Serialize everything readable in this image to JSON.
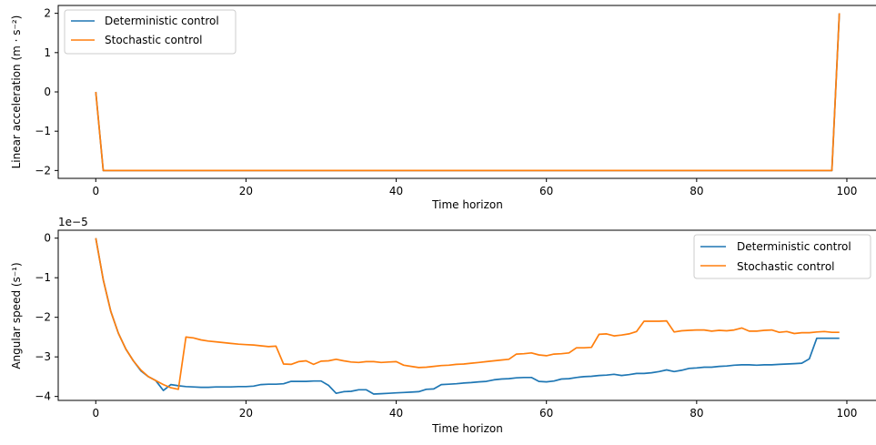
{
  "colors": {
    "deterministic": "#1f77b4",
    "stochastic": "#ff7f0e"
  },
  "chart_data": [
    {
      "type": "line",
      "xlabel": "Time horizon",
      "ylabel": "Linear acceleration (m · s⁻²)",
      "xlim": [
        -5,
        104
      ],
      "ylim": [
        -2.2,
        2.2
      ],
      "xticks": [
        0,
        20,
        40,
        60,
        80,
        100
      ],
      "yticks": [
        2,
        1,
        0,
        -1,
        -2
      ],
      "ytick_labels": [
        "2",
        "1",
        "0",
        "−1",
        "−2"
      ],
      "legend_position": "top-left",
      "series": [
        {
          "name": "Deterministic control",
          "color": "#1f77b4",
          "x": [
            0,
            1,
            98,
            99
          ],
          "y": [
            0,
            -2,
            -2,
            2
          ]
        },
        {
          "name": "Stochastic control",
          "color": "#ff7f0e",
          "x": [
            0,
            1,
            98,
            99
          ],
          "y": [
            0,
            -2,
            -2,
            2
          ]
        }
      ]
    },
    {
      "type": "line",
      "xlabel": "Time horizon",
      "ylabel": "Angular speed (s⁻¹)",
      "offset_text": "1e−5",
      "xlim": [
        -5,
        104
      ],
      "ylim": [
        -4.1,
        0.2
      ],
      "xticks": [
        0,
        20,
        40,
        60,
        80,
        100
      ],
      "yticks": [
        0,
        -1,
        -2,
        -3,
        -4
      ],
      "ytick_labels": [
        "0",
        "−1",
        "−2",
        "−3",
        "−4"
      ],
      "legend_position": "top-right",
      "series": [
        {
          "name": "Deterministic control",
          "color": "#1f77b4",
          "x": [
            0,
            1,
            2,
            3,
            4,
            5,
            6,
            7,
            8,
            9,
            10,
            11,
            12,
            13,
            14,
            15,
            16,
            17,
            18,
            19,
            20,
            21,
            22,
            23,
            24,
            25,
            26,
            27,
            28,
            29,
            30,
            31,
            32,
            33,
            34,
            35,
            36,
            37,
            38,
            39,
            40,
            41,
            42,
            43,
            44,
            45,
            46,
            47,
            48,
            49,
            50,
            51,
            52,
            53,
            54,
            55,
            56,
            57,
            58,
            59,
            60,
            61,
            62,
            63,
            64,
            65,
            66,
            67,
            68,
            69,
            70,
            71,
            72,
            73,
            74,
            75,
            76,
            77,
            78,
            79,
            80,
            81,
            82,
            83,
            84,
            85,
            86,
            87,
            88,
            89,
            90,
            91,
            92,
            93,
            94,
            95,
            96,
            97,
            98,
            99
          ],
          "y": [
            0,
            -1.05,
            -1.85,
            -2.4,
            -2.8,
            -3.1,
            -3.35,
            -3.5,
            -3.6,
            -3.85,
            -3.7,
            -3.73,
            -3.75,
            -3.76,
            -3.77,
            -3.77,
            -3.76,
            -3.76,
            -3.76,
            -3.75,
            -3.75,
            -3.74,
            -3.7,
            -3.69,
            -3.69,
            -3.68,
            -3.62,
            -3.62,
            -3.62,
            -3.61,
            -3.61,
            -3.72,
            -3.92,
            -3.88,
            -3.87,
            -3.83,
            -3.83,
            -3.94,
            -3.93,
            -3.92,
            -3.91,
            -3.9,
            -3.89,
            -3.88,
            -3.82,
            -3.81,
            -3.7,
            -3.69,
            -3.68,
            -3.66,
            -3.65,
            -3.63,
            -3.62,
            -3.58,
            -3.56,
            -3.55,
            -3.53,
            -3.52,
            -3.52,
            -3.62,
            -3.63,
            -3.61,
            -3.56,
            -3.55,
            -3.52,
            -3.5,
            -3.49,
            -3.47,
            -3.46,
            -3.44,
            -3.47,
            -3.45,
            -3.42,
            -3.42,
            -3.4,
            -3.37,
            -3.33,
            -3.37,
            -3.34,
            -3.29,
            -3.28,
            -3.26,
            -3.26,
            -3.24,
            -3.23,
            -3.21,
            -3.2,
            -3.2,
            -3.21,
            -3.2,
            -3.2,
            -3.19,
            -3.18,
            -3.17,
            -3.16,
            -3.05,
            -2.53,
            -2.53,
            -2.53,
            -2.53
          ]
        },
        {
          "name": "Stochastic control",
          "color": "#ff7f0e",
          "x": [
            0,
            1,
            2,
            3,
            4,
            5,
            6,
            7,
            8,
            9,
            10,
            11,
            12,
            13,
            14,
            15,
            16,
            17,
            18,
            19,
            20,
            21,
            22,
            23,
            24,
            25,
            26,
            27,
            28,
            29,
            30,
            31,
            32,
            33,
            34,
            35,
            36,
            37,
            38,
            39,
            40,
            41,
            42,
            43,
            44,
            45,
            46,
            47,
            48,
            49,
            50,
            51,
            52,
            53,
            54,
            55,
            56,
            57,
            58,
            59,
            60,
            61,
            62,
            63,
            64,
            65,
            66,
            67,
            68,
            69,
            70,
            71,
            72,
            73,
            74,
            75,
            76,
            77,
            78,
            79,
            80,
            81,
            82,
            83,
            84,
            85,
            86,
            87,
            88,
            89,
            90,
            91,
            92,
            93,
            94,
            95,
            96,
            97,
            98,
            99
          ],
          "y": [
            0,
            -1.05,
            -1.85,
            -2.4,
            -2.8,
            -3.1,
            -3.33,
            -3.5,
            -3.6,
            -3.7,
            -3.78,
            -3.82,
            -2.5,
            -2.52,
            -2.57,
            -2.6,
            -2.62,
            -2.64,
            -2.66,
            -2.68,
            -2.69,
            -2.7,
            -2.72,
            -2.74,
            -2.73,
            -3.18,
            -3.19,
            -3.12,
            -3.1,
            -3.19,
            -3.11,
            -3.1,
            -3.06,
            -3.1,
            -3.13,
            -3.14,
            -3.12,
            -3.12,
            -3.14,
            -3.13,
            -3.12,
            -3.21,
            -3.24,
            -3.27,
            -3.26,
            -3.24,
            -3.22,
            -3.21,
            -3.19,
            -3.18,
            -3.16,
            -3.14,
            -3.12,
            -3.1,
            -3.08,
            -3.06,
            -2.93,
            -2.92,
            -2.9,
            -2.95,
            -2.97,
            -2.93,
            -2.92,
            -2.9,
            -2.77,
            -2.77,
            -2.76,
            -2.43,
            -2.42,
            -2.47,
            -2.45,
            -2.42,
            -2.36,
            -2.1,
            -2.1,
            -2.1,
            -2.09,
            -2.37,
            -2.34,
            -2.33,
            -2.32,
            -2.32,
            -2.35,
            -2.33,
            -2.34,
            -2.32,
            -2.27,
            -2.35,
            -2.35,
            -2.33,
            -2.32,
            -2.38,
            -2.36,
            -2.41,
            -2.39,
            -2.39,
            -2.37,
            -2.36,
            -2.38,
            -2.38
          ]
        }
      ]
    }
  ]
}
